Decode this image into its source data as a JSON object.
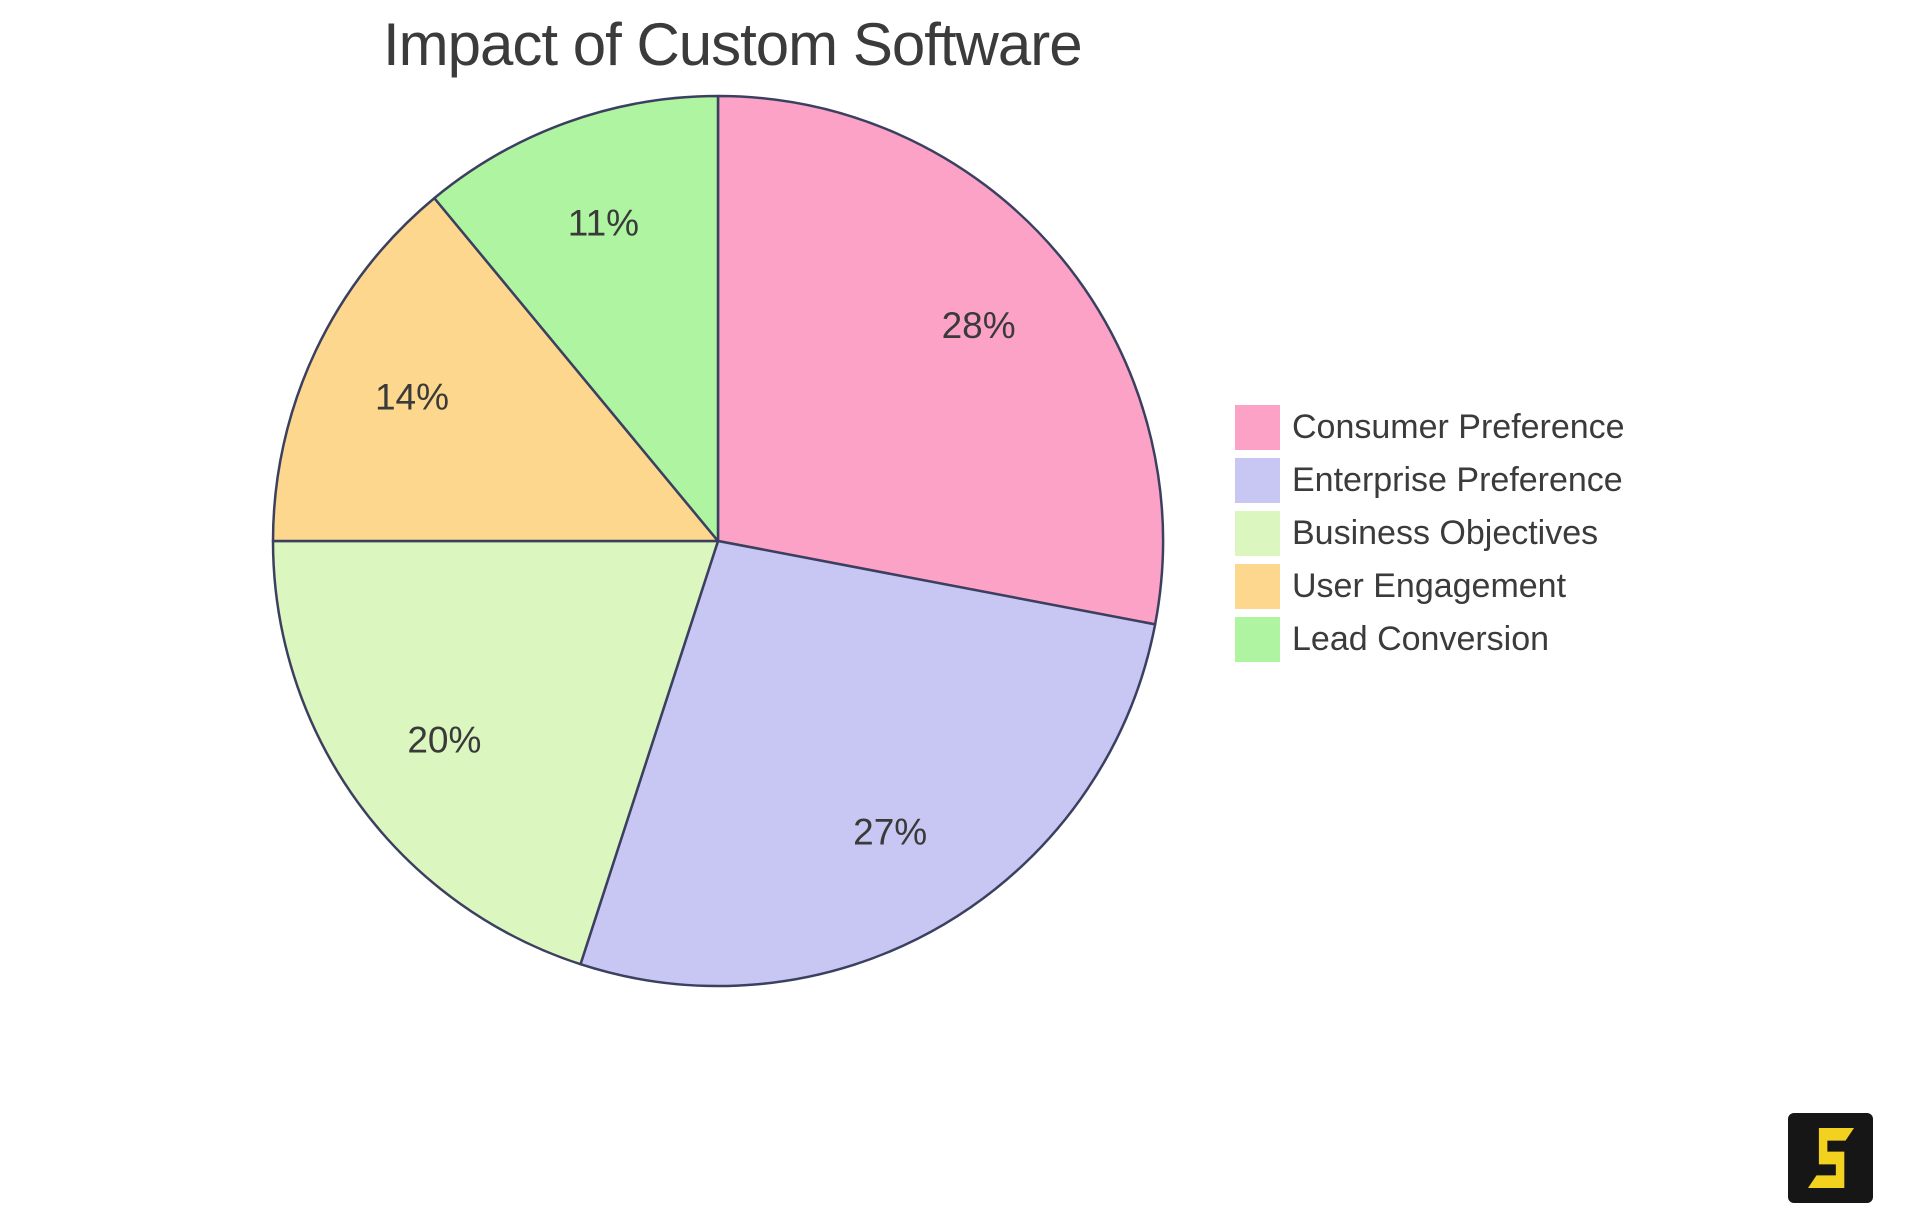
{
  "chart_data": {
    "type": "pie",
    "title": "Impact of Custom Software",
    "labels": [
      "Consumer Preference",
      "Enterprise Preference",
      "Business Objectives",
      "User Engagement",
      "Lead Conversion"
    ],
    "values": [
      28,
      27,
      20,
      14,
      11
    ],
    "value_labels": [
      "28%",
      "27%",
      "20%",
      "14%",
      "11%"
    ],
    "colors": [
      "#fba2c6",
      "#c8c7f3",
      "#dbf6be",
      "#fcd78d",
      "#aff4a1"
    ],
    "start_angle_deg": 0,
    "direction": "clockwise",
    "legend_position": "right",
    "slice_label_radius_fraction": 0.76
  },
  "colors": {
    "title_text": "#3b3b3b",
    "label_text": "#3a3a3a",
    "legend_text": "#3b3b3b",
    "slice_stroke": "#3c4060",
    "background": "#ffffff",
    "logo_background": "#161616",
    "logo_glyph": "#f2d21e"
  },
  "logo": {
    "glyph": "S"
  }
}
